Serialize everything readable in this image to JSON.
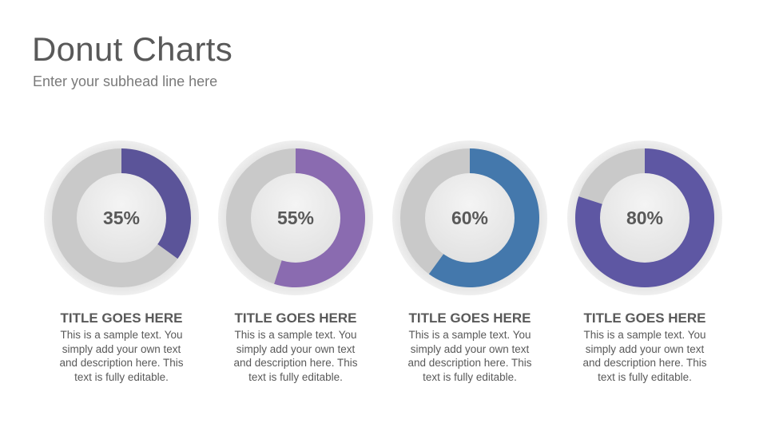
{
  "header": {
    "title": "Donut Charts",
    "subtitle": "Enter your subhead line here"
  },
  "colors": {
    "track": "#c9c9c9",
    "outer_ring": "#e8e8e8",
    "center": "#ebebeb"
  },
  "chart_data": [
    {
      "type": "pie",
      "variant": "donut",
      "values": [
        35,
        65
      ],
      "label": "35%",
      "color": "#5b5499",
      "title": "TITLE GOES HERE",
      "description": "This is a sample text. You simply add your own text and description here. This text is fully editable."
    },
    {
      "type": "pie",
      "variant": "donut",
      "values": [
        55,
        45
      ],
      "label": "55%",
      "color": "#8a6bb0",
      "title": "TITLE GOES HERE",
      "description": "This is a sample text. You simply add your own text and description here. This text is fully editable."
    },
    {
      "type": "pie",
      "variant": "donut",
      "values": [
        60,
        40
      ],
      "label": "60%",
      "color": "#4478ac",
      "title": "TITLE GOES HERE",
      "description": "This is a sample text. You simply add your own text and description here. This text is fully editable."
    },
    {
      "type": "pie",
      "variant": "donut",
      "values": [
        80,
        20
      ],
      "label": "80%",
      "color": "#5e57a3",
      "title": "TITLE GOES HERE",
      "description": "This is a sample text. You simply add your own text and description here. This text is fully editable."
    }
  ]
}
